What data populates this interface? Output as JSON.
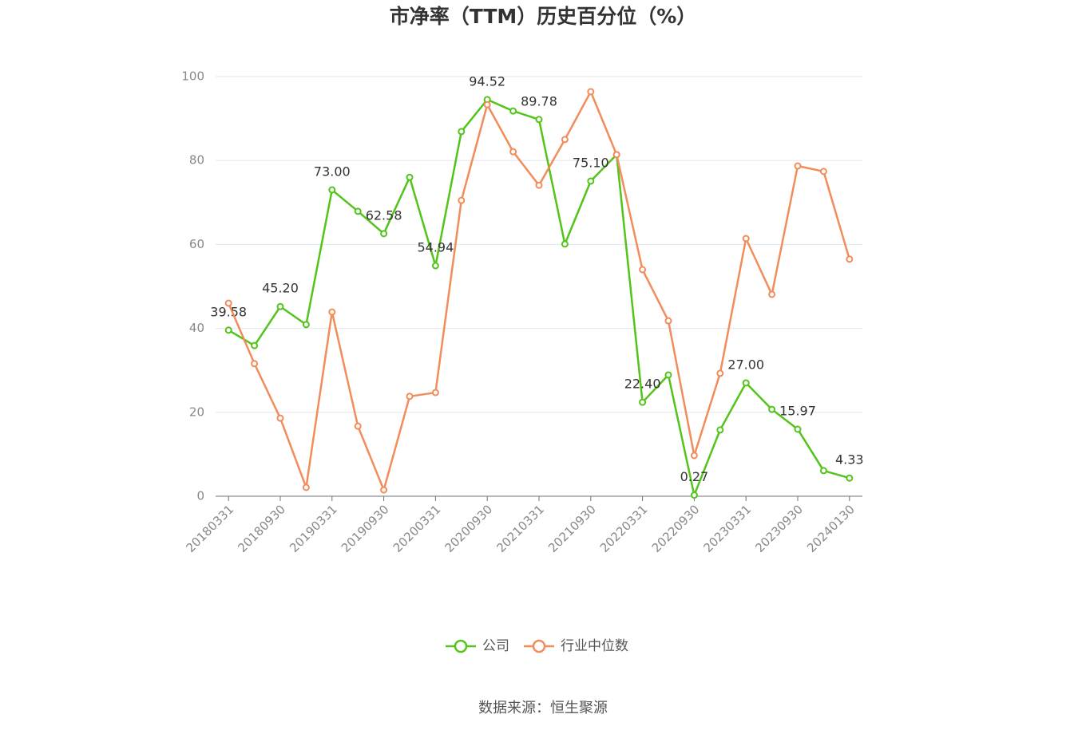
{
  "chart_data": {
    "type": "line",
    "title": "市净率（TTM）历史百分位（%）",
    "categories": [
      "20180331",
      null,
      "20180930",
      null,
      "20190331",
      null,
      "20190930",
      null,
      "20200331",
      null,
      "20200930",
      null,
      "20210331",
      null,
      "20210930",
      null,
      "20220331",
      null,
      "20220930",
      null,
      "20230331",
      null,
      "20230930",
      null,
      "20240130"
    ],
    "series": [
      {
        "name": "公司",
        "color": "#52c41a",
        "values": [
          39.58,
          35.9,
          45.2,
          40.9,
          73.0,
          67.9,
          62.58,
          76.0,
          54.94,
          86.9,
          94.52,
          91.8,
          89.78,
          60.1,
          75.1,
          81.4,
          22.4,
          28.9,
          0.27,
          15.8,
          27.0,
          20.7,
          15.97,
          6.1,
          4.33
        ],
        "value_labels": [
          "39.58",
          null,
          "45.20",
          null,
          "73.00",
          null,
          "62.58",
          null,
          "54.94",
          null,
          "94.52",
          null,
          "89.78",
          null,
          "75.10",
          null,
          "22.40",
          null,
          "0.27",
          null,
          "27.00",
          null,
          "15.97",
          null,
          "4.33"
        ]
      },
      {
        "name": "行业中位数",
        "color": "#f28c5a",
        "values": [
          46.0,
          31.6,
          18.6,
          2.1,
          43.9,
          16.7,
          1.5,
          23.8,
          24.7,
          70.5,
          93.3,
          82.1,
          74.1,
          85.0,
          96.4,
          81.4,
          54.0,
          41.8,
          9.7,
          29.3,
          61.4,
          48.1,
          78.7,
          77.4,
          56.5
        ]
      }
    ],
    "ylim": [
      0,
      100
    ],
    "yticks": [
      0,
      20,
      40,
      60,
      80,
      100
    ],
    "grid": true,
    "source": "数据来源：恒生聚源"
  }
}
